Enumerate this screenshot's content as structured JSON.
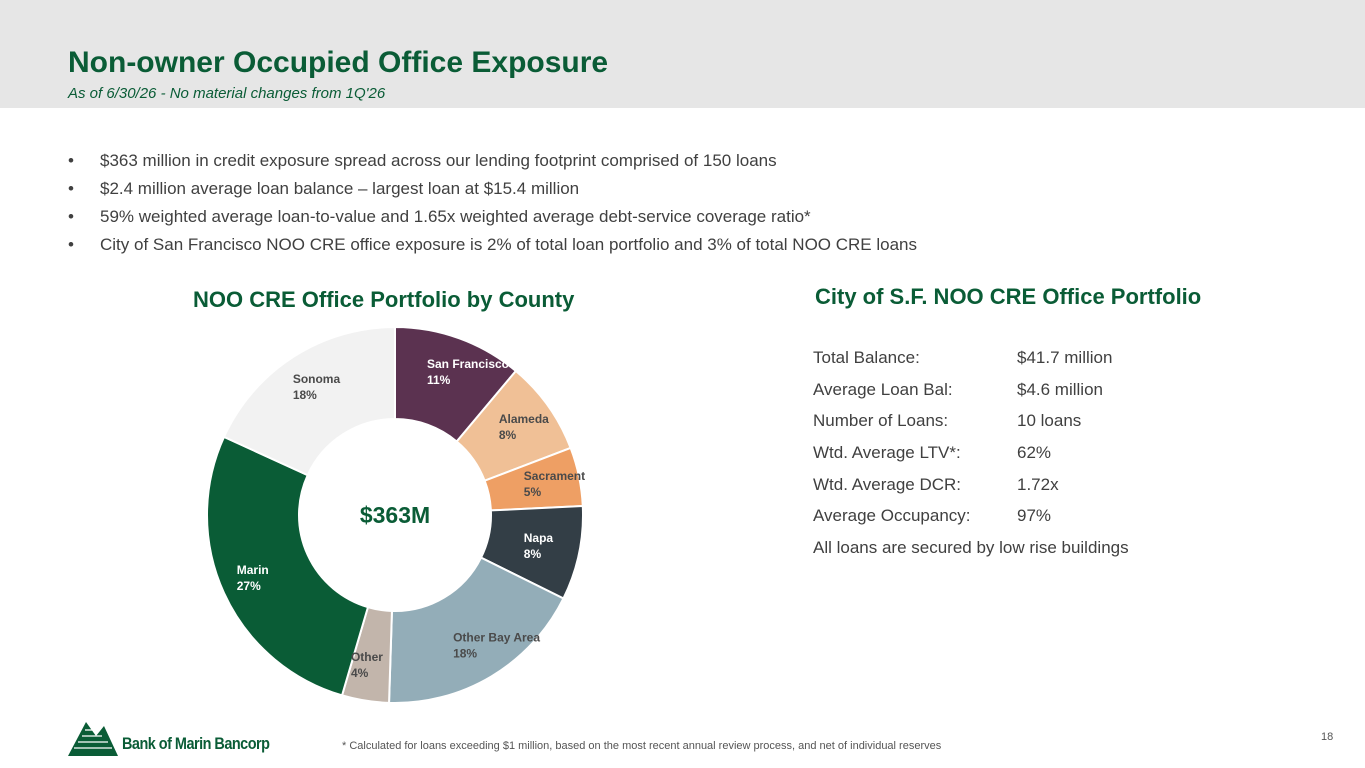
{
  "header": {
    "title": "Non-owner Occupied Office Exposure",
    "subtitle": "As of 6/30/26 - No material changes from 1Q'26"
  },
  "bullets": [
    "$363 million in credit exposure spread across our lending footprint comprised of 150 loans",
    "$2.4 million average loan balance – largest loan at $15.4 million",
    "59% weighted average loan-to-value and 1.65x weighted average debt-service coverage ratio*",
    "City of San Francisco NOO CRE office exposure is 2% of total loan portfolio and 3% of total NOO CRE loans"
  ],
  "bullet_symbol": "•",
  "chart_data": {
    "type": "pie",
    "title": "NOO CRE Office Portfolio by County",
    "center_label": "$363M",
    "categories": [
      "San Francisco",
      "Alameda",
      "Sacramento",
      "Napa",
      "Other Bay Area",
      "Other",
      "Marin",
      "Sonoma"
    ],
    "values": [
      11,
      8,
      5,
      8,
      18,
      4,
      27,
      18
    ],
    "value_labels": [
      "11%",
      "8%",
      "5%",
      "8%",
      "18%",
      "4%",
      "27%",
      "18%"
    ],
    "unit": "%",
    "colors": [
      "#5b3250",
      "#f0c096",
      "#ee9f64",
      "#333e46",
      "#93adb8",
      "#c2b5ab",
      "#0a5c36",
      "#f2f2f2"
    ],
    "label_colors": [
      "#ffffff",
      "#4a4a4a",
      "#4a4a4a",
      "#ffffff",
      "#4a4a4a",
      "#4a4a4a",
      "#ffffff",
      "#4a4a4a"
    ],
    "legend": "none"
  },
  "sf_portfolio": {
    "title": "City of S.F. NOO CRE Office Portfolio",
    "rows": [
      {
        "label": "Total Balance:",
        "value": "$41.7 million"
      },
      {
        "label": "Average Loan Bal:",
        "value": "$4.6 million"
      },
      {
        "label": "Number of Loans:",
        "value": "10 loans"
      },
      {
        "label": "Wtd. Average LTV*:",
        "value": "62%"
      },
      {
        "label": "Wtd. Average DCR:",
        "value": "1.72x"
      },
      {
        "label": "Average Occupancy:",
        "value": "97%"
      }
    ],
    "note": "All loans are secured by low rise buildings"
  },
  "footer": {
    "footnote": "* Calculated for loans exceeding $1 million, based on the most recent annual review process, and net of individual reserves",
    "page_number": "18",
    "logo_text": "Bank of Marin Bancorp"
  },
  "colors": {
    "brand_green": "#0a5c36",
    "header_bg": "#e6e6e6"
  }
}
